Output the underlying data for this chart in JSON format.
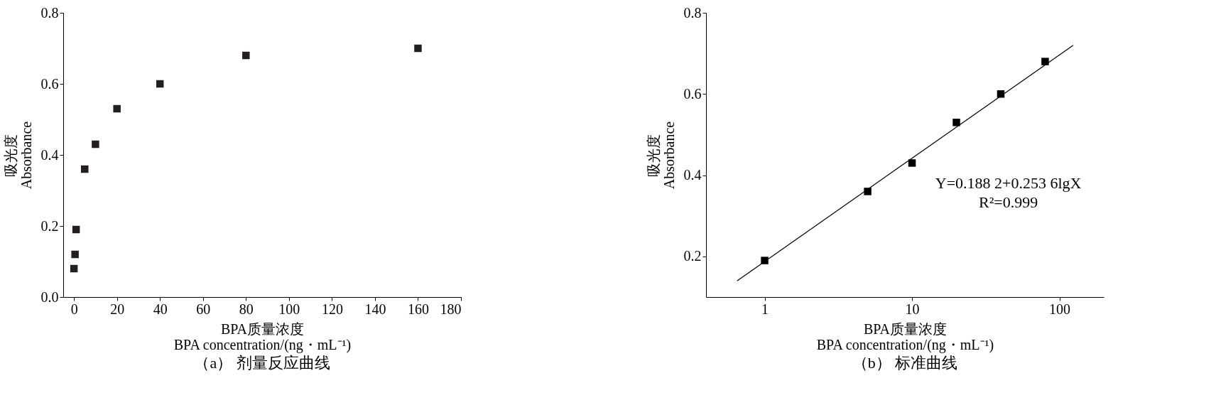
{
  "chart_data": [
    {
      "type": "scatter",
      "title": "（a） 剂量反应曲线",
      "xlabel": "BPA质量浓度\nBPA concentration/(ng・mL⁻¹)",
      "ylabel": "吸光度\nAbsorbance",
      "marker": "square",
      "x": [
        0,
        0.5,
        1,
        5,
        10,
        20,
        40,
        80,
        160
      ],
      "values": [
        0.08,
        0.12,
        0.19,
        0.36,
        0.43,
        0.53,
        0.6,
        0.68,
        0.7
      ],
      "color": "#231f20",
      "xlim": [
        -5,
        180
      ],
      "xticks": [
        0,
        20,
        40,
        60,
        80,
        100,
        120,
        140,
        160,
        180
      ],
      "ylim": [
        0,
        0.8
      ],
      "yticks": [
        {
          "value": 0,
          "label": "0.0"
        },
        0.2,
        0.4,
        0.6,
        0.8
      ]
    },
    {
      "type": "scatter",
      "title": "（b） 标准曲线",
      "xlabel": "BPA质量浓度\nBPA concentration/(ng・mL⁻¹)",
      "ylabel": "吸光度\nAbsorbance",
      "log": "x",
      "series": [
        {
          "type": "scatter",
          "x": [
            1,
            5,
            10,
            20,
            40,
            80
          ],
          "values": [
            0.19,
            0.36,
            0.43,
            0.53,
            0.6,
            0.68
          ],
          "color": "#000000",
          "marker": "square"
        },
        {
          "type": "line",
          "x": [
            0.65,
            124
          ],
          "values": [
            0.14,
            0.72
          ],
          "color": "#000000",
          "marker": "none"
        }
      ],
      "xlim": [
        0.4,
        200
      ],
      "xticks": [
        1,
        10,
        100
      ],
      "ylim": [
        0.1,
        0.8
      ],
      "yticks": [
        0.2,
        0.4,
        0.6,
        0.8
      ],
      "annotations": [
        "Y=0.188 2+0.253 6lgX",
        "R²=0.999"
      ]
    }
  ]
}
